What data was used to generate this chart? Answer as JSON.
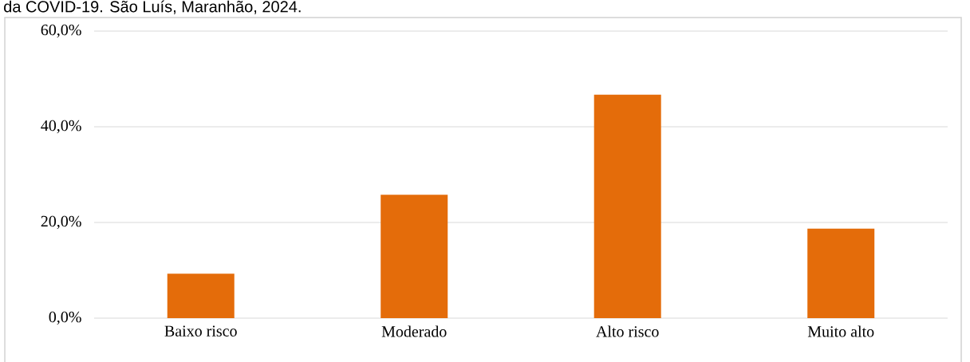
{
  "chart_data": {
    "type": "bar",
    "title": "da COVID-19. São Luís, Maranhão, 2024.",
    "categories": [
      "Baixo risco",
      "Moderado",
      "Alto risco",
      "Muito alto"
    ],
    "values": [
      9.3,
      25.8,
      46.7,
      18.7
    ],
    "color": "#e46c0a",
    "ylim": [
      0,
      60
    ],
    "yticks": [
      {
        "value": 0,
        "label": "0,0%"
      },
      {
        "value": 20,
        "label": "20,0%"
      },
      {
        "value": 40,
        "label": "40,0%"
      },
      {
        "value": 60,
        "label": "60,0%"
      }
    ],
    "grid": "y"
  }
}
